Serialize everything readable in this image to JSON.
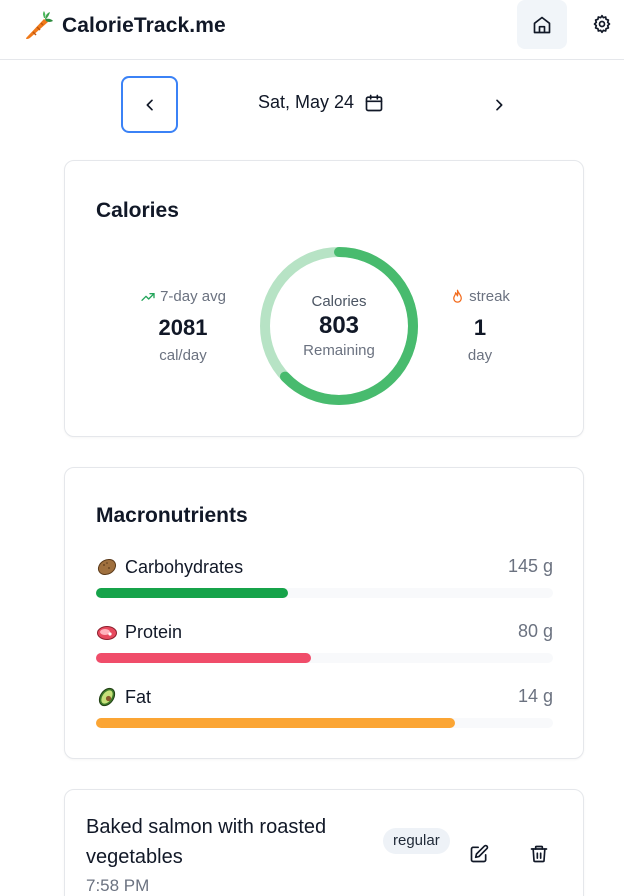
{
  "header": {
    "title": "CalorieTrack.me",
    "logo_icon": "carrot-icon",
    "home_icon": "home-icon",
    "settings_icon": "gear-icon"
  },
  "date_nav": {
    "date": "Sat, May 24",
    "prev_icon": "chevron-left-icon",
    "next_icon": "chevron-right-icon",
    "calendar_icon": "calendar-icon"
  },
  "calories": {
    "title": "Calories",
    "avg": {
      "label": "7-day avg",
      "value": "2081",
      "unit": "cal/day",
      "icon": "trending-up-icon"
    },
    "ring": {
      "label": "Calories",
      "value": "803",
      "sub": "Remaining",
      "remaining_fraction": 0.63
    },
    "streak": {
      "label": "streak",
      "value": "1",
      "unit": "day",
      "icon": "flame-icon"
    },
    "colors": {
      "ring_fg": "#48bb6e",
      "ring_bg": "#b7e3c5"
    }
  },
  "macros": {
    "title": "Macronutrients",
    "items": [
      {
        "name": "Carbohydrates",
        "amount": "145 g",
        "fraction": 0.42,
        "color": "#16a34a",
        "icon": "potato-icon"
      },
      {
        "name": "Protein",
        "amount": "80 g",
        "fraction": 0.47,
        "color": "#f04d6a",
        "icon": "meat-icon"
      },
      {
        "name": "Fat",
        "amount": "14 g",
        "fraction": 0.785,
        "color": "#fba534",
        "icon": "avocado-icon"
      }
    ]
  },
  "meals": [
    {
      "name": "Baked salmon with roasted vegetables",
      "time": "7:58 PM",
      "badge": "regular",
      "edit_icon": "edit-icon",
      "delete_icon": "trash-icon"
    }
  ]
}
